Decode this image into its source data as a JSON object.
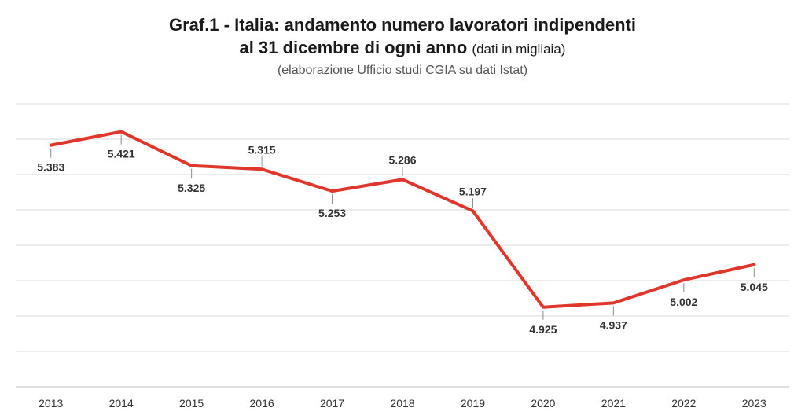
{
  "chart_data": {
    "type": "line",
    "title_line1": "Graf.1 - Italia: andamento numero lavoratori indipendenti",
    "title_line2_bold": "al 31 dicembre di ogni anno",
    "title_line2_note": "(dati in migliaia)",
    "subtitle": "(elaborazione Ufficio studi CGIA su dati Istat)",
    "x": [
      "2013",
      "2014",
      "2015",
      "2016",
      "2017",
      "2018",
      "2019",
      "2020",
      "2021",
      "2022",
      "2023"
    ],
    "series": [
      {
        "values": [
          5383,
          5421,
          5325,
          5315,
          5253,
          5286,
          5197,
          4925,
          4937,
          5002,
          5045
        ],
        "labels": [
          "5.383",
          "5.421",
          "5.325",
          "5.315",
          "5.253",
          "5.286",
          "5.197",
          "4.925",
          "4.937",
          "5.002",
          "5.045"
        ],
        "label_side": [
          "below",
          "below",
          "below",
          "above",
          "below",
          "above",
          "above",
          "below",
          "below",
          "below",
          "below"
        ],
        "color": "#e0362c"
      }
    ],
    "ylim": [
      4700,
      5500
    ],
    "gridlines": true,
    "legend": "none"
  }
}
